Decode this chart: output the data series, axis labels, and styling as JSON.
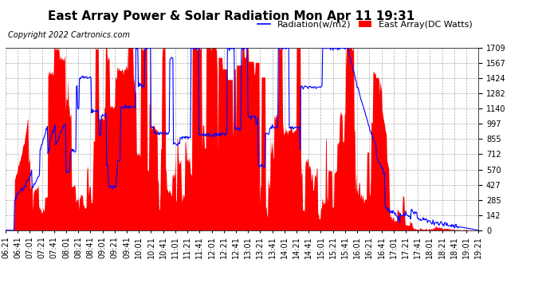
{
  "title": "East Array Power & Solar Radiation Mon Apr 11 19:31",
  "copyright": "Copyright 2022 Cartronics.com",
  "legend_radiation": "Radiation(w/m2)",
  "legend_east": "East Array(DC Watts)",
  "y_max": 1709.2,
  "y_min": 0.0,
  "y_ticks": [
    0.0,
    142.4,
    284.9,
    427.3,
    569.7,
    712.2,
    854.6,
    997.0,
    1139.5,
    1281.9,
    1424.3,
    1566.8,
    1709.2
  ],
  "x_labels": [
    "06:21",
    "06:41",
    "07:01",
    "07:21",
    "07:41",
    "08:01",
    "08:21",
    "08:41",
    "09:01",
    "09:21",
    "09:41",
    "10:01",
    "10:21",
    "10:41",
    "11:01",
    "11:21",
    "11:41",
    "12:01",
    "12:21",
    "12:41",
    "13:01",
    "13:21",
    "13:41",
    "14:01",
    "14:21",
    "14:41",
    "15:01",
    "15:21",
    "15:41",
    "16:01",
    "16:21",
    "16:41",
    "17:01",
    "17:21",
    "17:41",
    "18:01",
    "18:21",
    "18:41",
    "19:01",
    "19:21"
  ],
  "background_color": "#ffffff",
  "plot_bg_color": "#ffffff",
  "grid_color": "#aaaaaa",
  "radiation_color": "#0000ff",
  "east_array_color": "#ff0000",
  "east_array_fill": "#ff0000",
  "title_fontsize": 11,
  "tick_fontsize": 7,
  "copyright_fontsize": 7,
  "legend_fontsize": 8
}
